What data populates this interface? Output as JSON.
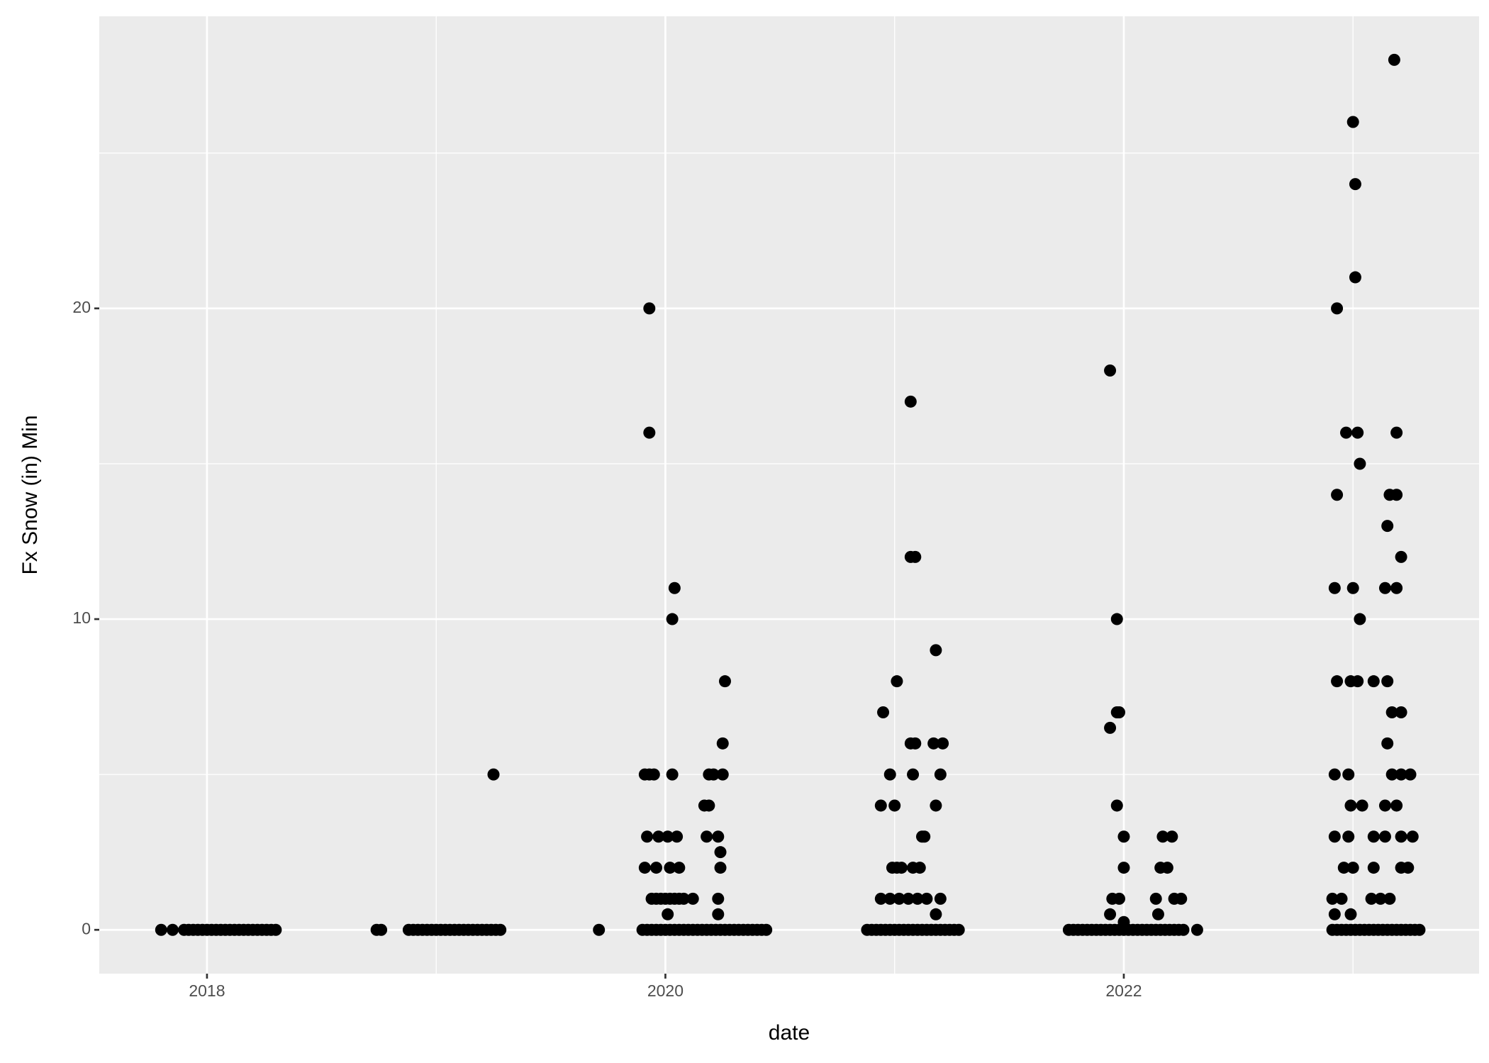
{
  "chart_data": {
    "type": "scatter",
    "x_label": "date",
    "y_label": "Fx Snow (in) Min",
    "color": "#000000",
    "xlim": [
      2017.53,
      2023.55
    ],
    "ylim": [
      -1.41,
      29.4
    ],
    "xticks": [
      2018,
      2020,
      2022
    ],
    "xminor": [
      2019,
      2021,
      2023
    ],
    "yticks": [
      0,
      10,
      20
    ],
    "yminor": [
      5,
      15,
      25
    ],
    "grid": true,
    "x": [
      2017.8,
      2017.85,
      2017.9,
      2017.92,
      2017.94,
      2017.96,
      2017.98,
      2018.0,
      2018.02,
      2018.04,
      2018.06,
      2018.08,
      2018.1,
      2018.12,
      2018.14,
      2018.16,
      2018.18,
      2018.2,
      2018.22,
      2018.24,
      2018.26,
      2018.28,
      2018.3,
      2018.74,
      2018.76,
      2018.88,
      2018.9,
      2018.92,
      2018.94,
      2018.96,
      2018.98,
      2019.0,
      2019.02,
      2019.04,
      2019.06,
      2019.08,
      2019.1,
      2019.12,
      2019.14,
      2019.16,
      2019.18,
      2019.2,
      2019.22,
      2019.24,
      2019.26,
      2019.28,
      2019.25,
      2019.71,
      2019.9,
      2019.92,
      2019.94,
      2019.96,
      2019.98,
      2020.0,
      2020.02,
      2020.04,
      2020.06,
      2020.08,
      2020.1,
      2020.12,
      2020.14,
      2020.16,
      2020.18,
      2020.2,
      2020.22,
      2020.24,
      2020.26,
      2020.28,
      2020.3,
      2020.32,
      2020.34,
      2020.36,
      2020.38,
      2020.4,
      2020.42,
      2020.44,
      2019.93,
      2019.93,
      2020.04,
      2020.03,
      2020.26,
      2020.25,
      2019.91,
      2019.93,
      2019.95,
      2020.03,
      2020.19,
      2020.21,
      2020.25,
      2020.17,
      2020.19,
      2019.92,
      2019.97,
      2020.01,
      2020.05,
      2020.18,
      2020.23,
      2020.24,
      2019.91,
      2019.96,
      2020.02,
      2020.06,
      2020.24,
      2019.94,
      2019.96,
      2019.98,
      2020.0,
      2020.02,
      2020.04,
      2020.06,
      2020.08,
      2020.12,
      2020.23,
      2020.01,
      2020.23,
      2020.88,
      2020.9,
      2020.92,
      2020.94,
      2020.96,
      2020.98,
      2021.0,
      2021.02,
      2021.04,
      2021.06,
      2021.08,
      2021.1,
      2021.12,
      2021.14,
      2021.16,
      2021.18,
      2021.2,
      2021.22,
      2021.24,
      2021.26,
      2021.28,
      2021.07,
      2021.07,
      2021.09,
      2021.18,
      2021.01,
      2020.95,
      2021.07,
      2021.09,
      2021.17,
      2021.21,
      2020.98,
      2021.08,
      2021.2,
      2020.94,
      2021.0,
      2021.18,
      2021.12,
      2021.13,
      2020.99,
      2021.01,
      2021.03,
      2021.08,
      2021.11,
      2020.94,
      2020.98,
      2021.02,
      2021.06,
      2021.1,
      2021.14,
      2021.2,
      2021.18,
      2021.76,
      2021.78,
      2021.8,
      2021.82,
      2021.84,
      2021.86,
      2021.88,
      2021.9,
      2021.92,
      2021.94,
      2021.96,
      2021.98,
      2022.0,
      2022.02,
      2022.04,
      2022.06,
      2022.08,
      2022.1,
      2022.12,
      2022.14,
      2022.16,
      2022.18,
      2022.2,
      2022.22,
      2022.24,
      2022.26,
      2022.32,
      2021.94,
      2021.97,
      2021.97,
      2021.98,
      2021.94,
      2021.97,
      2022.0,
      2022.17,
      2022.21,
      2022.0,
      2022.16,
      2022.19,
      2021.95,
      2021.98,
      2022.14,
      2022.22,
      2022.25,
      2021.94,
      2022.15,
      2022.0,
      2022.91,
      2022.93,
      2022.95,
      2022.97,
      2022.99,
      2023.01,
      2023.03,
      2023.05,
      2023.07,
      2023.09,
      2023.11,
      2023.13,
      2023.15,
      2023.17,
      2023.19,
      2023.21,
      2023.23,
      2023.25,
      2023.27,
      2023.29,
      2023.18,
      2023.0,
      2023.01,
      2023.01,
      2022.93,
      2022.97,
      2023.02,
      2023.19,
      2023.03,
      2022.93,
      2023.16,
      2023.19,
      2023.15,
      2023.21,
      2022.92,
      2023.0,
      2023.14,
      2023.19,
      2023.03,
      2022.93,
      2022.99,
      2023.02,
      2023.09,
      2023.15,
      2023.17,
      2023.21,
      2023.15,
      2022.92,
      2022.98,
      2023.17,
      2023.21,
      2023.25,
      2022.99,
      2023.04,
      2023.14,
      2023.19,
      2022.92,
      2022.98,
      2023.09,
      2023.14,
      2023.21,
      2023.26,
      2022.96,
      2023.0,
      2023.09,
      2023.21,
      2023.24,
      2022.91,
      2022.95,
      2023.08,
      2023.12,
      2023.16,
      2022.92,
      2022.99
    ],
    "values": [
      0,
      0,
      0,
      0,
      0,
      0,
      0,
      0,
      0,
      0,
      0,
      0,
      0,
      0,
      0,
      0,
      0,
      0,
      0,
      0,
      0,
      0,
      0,
      0,
      0,
      0,
      0,
      0,
      0,
      0,
      0,
      0,
      0,
      0,
      0,
      0,
      0,
      0,
      0,
      0,
      0,
      0,
      0,
      0,
      0,
      0,
      5,
      0,
      0,
      0,
      0,
      0,
      0,
      0,
      0,
      0,
      0,
      0,
      0,
      0,
      0,
      0,
      0,
      0,
      0,
      0,
      0,
      0,
      0,
      0,
      0,
      0,
      0,
      0,
      0,
      0,
      20,
      16,
      11,
      10,
      8,
      6,
      5,
      5,
      5,
      5,
      5,
      5,
      5,
      4,
      4,
      3,
      3,
      3,
      3,
      3,
      3,
      2.5,
      2,
      2,
      2,
      2,
      2,
      1,
      1,
      1,
      1,
      1,
      1,
      1,
      1,
      1,
      1,
      0.5,
      0.5,
      0,
      0,
      0,
      0,
      0,
      0,
      0,
      0,
      0,
      0,
      0,
      0,
      0,
      0,
      0,
      0,
      0,
      0,
      0,
      0,
      0,
      17,
      12,
      12,
      9,
      8,
      7,
      6,
      6,
      6,
      6,
      5,
      5,
      5,
      4,
      4,
      4,
      3,
      3,
      2,
      2,
      2,
      2,
      2,
      1,
      1,
      1,
      1,
      1,
      1,
      1,
      0.5,
      0,
      0,
      0,
      0,
      0,
      0,
      0,
      0,
      0,
      0,
      0,
      0,
      0,
      0,
      0,
      0,
      0,
      0,
      0,
      0,
      0,
      0,
      0,
      0,
      0,
      0,
      0,
      18,
      10,
      7,
      7,
      6.5,
      4,
      3,
      3,
      3,
      2,
      2,
      2,
      1,
      1,
      1,
      1,
      1,
      0.5,
      0.5,
      0.25,
      0,
      0,
      0,
      0,
      0,
      0,
      0,
      0,
      0,
      0,
      0,
      0,
      0,
      0,
      0,
      0,
      0,
      0,
      0,
      0,
      28,
      26,
      24,
      21,
      20,
      16,
      16,
      16,
      15,
      14,
      14,
      14,
      13,
      12,
      11,
      11,
      11,
      11,
      10,
      8,
      8,
      8,
      8,
      8,
      7,
      7,
      6,
      5,
      5,
      5,
      5,
      5,
      4,
      4,
      4,
      4,
      3,
      3,
      3,
      3,
      3,
      3,
      2,
      2,
      2,
      2,
      2,
      1,
      1,
      1,
      1,
      1,
      0.5,
      0.5
    ]
  }
}
